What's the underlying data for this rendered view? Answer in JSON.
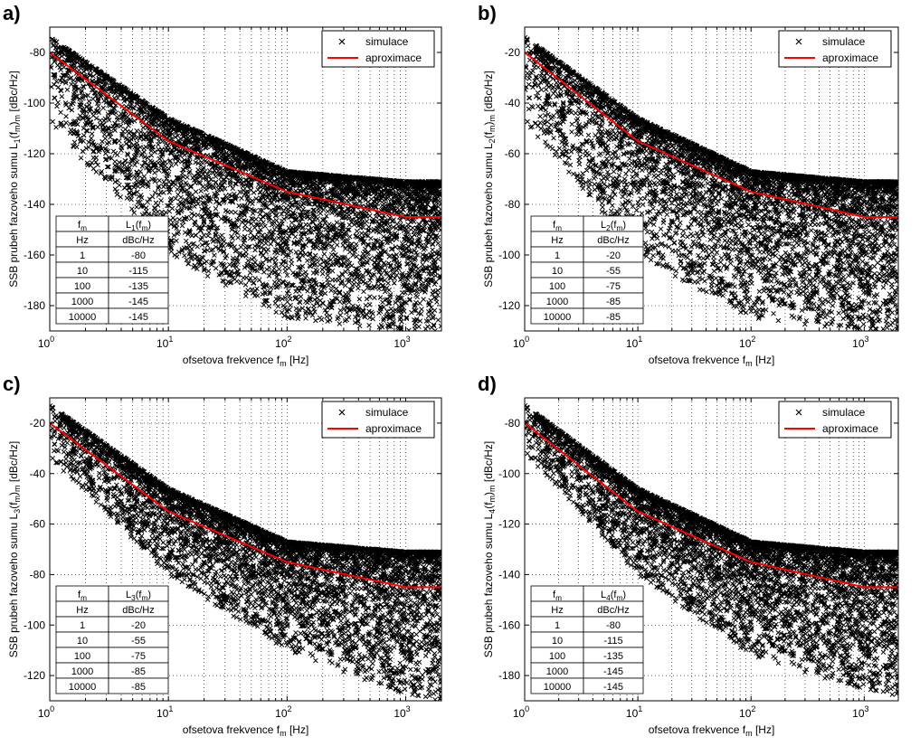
{
  "chart_data": [
    {
      "type": "scatter",
      "panel_label": "a)",
      "xlabel_main": "ofsetova frekvence f",
      "xlabel_sub": "m",
      "xlabel_unit": " [Hz]",
      "ylabel_main": "SSB prubeh fazoveho sumu L",
      "ylabel_index": "1",
      "ylabel_unit": " [dBc/Hz]",
      "xscale": "log",
      "xlim": [
        1,
        2000
      ],
      "ylim": [
        -190,
        -70
      ],
      "yticks": [
        -180,
        -160,
        -140,
        -120,
        -100,
        -80
      ],
      "xticks": [
        "10^0",
        "10^1",
        "10^2",
        "10^3"
      ],
      "grid": true,
      "legend_position": "top-right",
      "series": [
        {
          "name": "simulace",
          "marker": "x",
          "color": "#000000",
          "approx_envelope": {
            "x": [
              1,
              10,
              100,
              1000,
              2000
            ],
            "upper": [
              -74,
              -106,
              -127,
              -131,
              -131
            ],
            "lower": [
              -108,
              -160,
              -185,
              -190,
              -190
            ]
          }
        },
        {
          "name": "aproximace",
          "marker": "line",
          "color": "#ff0000",
          "x": [
            1,
            10,
            100,
            1000,
            2000
          ],
          "y": [
            -80,
            -115,
            -135,
            -145,
            -145
          ]
        }
      ],
      "table": {
        "headers": [
          "f_m",
          "L_1(f_m)"
        ],
        "units": [
          "Hz",
          "dBc/Hz"
        ],
        "rows": [
          [
            "1",
            "-80"
          ],
          [
            "10",
            "-115"
          ],
          [
            "100",
            "-135"
          ],
          [
            "1000",
            "-145"
          ],
          [
            "10000",
            "-145"
          ]
        ]
      }
    },
    {
      "type": "scatter",
      "panel_label": "b)",
      "xlabel_main": "ofsetova frekvence f",
      "xlabel_sub": "m",
      "xlabel_unit": " [Hz]",
      "ylabel_main": "SSB prubeh fazoveho sumu L",
      "ylabel_index": "2",
      "ylabel_unit": " [dBc/Hz]",
      "xscale": "log",
      "xlim": [
        1,
        2000
      ],
      "ylim": [
        -130,
        -10
      ],
      "yticks": [
        -120,
        -100,
        -80,
        -60,
        -40,
        -20
      ],
      "xticks": [
        "10^0",
        "10^1",
        "10^2",
        "10^3"
      ],
      "grid": true,
      "legend_position": "top-right",
      "series": [
        {
          "name": "simulace",
          "marker": "x",
          "color": "#000000",
          "approx_envelope": {
            "x": [
              1,
              10,
              100,
              1000,
              2000
            ],
            "upper": [
              -14,
              -46,
              -67,
              -71,
              -71
            ],
            "lower": [
              -48,
              -100,
              -125,
              -130,
              -130
            ]
          }
        },
        {
          "name": "aproximace",
          "marker": "line",
          "color": "#ff0000",
          "x": [
            1,
            10,
            100,
            1000,
            2000
          ],
          "y": [
            -20,
            -55,
            -75,
            -85,
            -85
          ]
        }
      ],
      "table": {
        "headers": [
          "f_m",
          "L_2(f_m)"
        ],
        "units": [
          "Hz",
          "dBc/Hz"
        ],
        "rows": [
          [
            "1",
            "-20"
          ],
          [
            "10",
            "-55"
          ],
          [
            "100",
            "-75"
          ],
          [
            "1000",
            "-85"
          ],
          [
            "10000",
            "-85"
          ]
        ]
      }
    },
    {
      "type": "scatter",
      "panel_label": "c)",
      "xlabel_main": "ofsetova frekvence f",
      "xlabel_sub": "m",
      "xlabel_unit": " [Hz]",
      "ylabel_main": "SSB prubeh fazoveho sumu L",
      "ylabel_index": "3",
      "ylabel_unit": " [dBc/Hz]",
      "xscale": "log",
      "xlim": [
        1,
        2000
      ],
      "ylim": [
        -130,
        -10
      ],
      "yticks": [
        -120,
        -100,
        -80,
        -60,
        -40,
        -20
      ],
      "xticks": [
        "10^0",
        "10^1",
        "10^2",
        "10^3"
      ],
      "grid": true,
      "legend_position": "top-right",
      "series": [
        {
          "name": "simulace",
          "marker": "x",
          "color": "#000000",
          "approx_envelope": {
            "x": [
              1,
              10,
              100,
              1000,
              2000
            ],
            "upper": [
              -13,
              -46,
              -67,
              -71,
              -71
            ],
            "lower": [
              -34,
              -80,
              -110,
              -128,
              -130
            ]
          }
        },
        {
          "name": "aproximace",
          "marker": "line",
          "color": "#ff0000",
          "x": [
            1,
            10,
            100,
            1000,
            2000
          ],
          "y": [
            -20,
            -55,
            -75,
            -85,
            -85
          ]
        }
      ],
      "table": {
        "headers": [
          "f_m",
          "L_3(f_m)"
        ],
        "units": [
          "Hz",
          "dBc/Hz"
        ],
        "rows": [
          [
            "1",
            "-20"
          ],
          [
            "10",
            "-55"
          ],
          [
            "100",
            "-75"
          ],
          [
            "1000",
            "-85"
          ],
          [
            "10000",
            "-85"
          ]
        ]
      }
    },
    {
      "type": "scatter",
      "panel_label": "d)",
      "xlabel_main": "ofsetova frekvence f",
      "xlabel_sub": "m",
      "xlabel_unit": " [Hz]",
      "ylabel_main": "SSB prubeh fazoveho sumu L",
      "ylabel_index": "4",
      "ylabel_unit": " [dBc/Hz]",
      "xscale": "log",
      "xlim": [
        1,
        2000
      ],
      "ylim": [
        -190,
        -70
      ],
      "yticks": [
        -180,
        -160,
        -140,
        -120,
        -100,
        -80
      ],
      "xticks": [
        "10^0",
        "10^1",
        "10^2",
        "10^3"
      ],
      "grid": true,
      "legend_position": "top-right",
      "series": [
        {
          "name": "simulace",
          "marker": "x",
          "color": "#000000",
          "approx_envelope": {
            "x": [
              1,
              10,
              100,
              1000,
              2000
            ],
            "upper": [
              -73,
              -106,
              -127,
              -131,
              -131
            ],
            "lower": [
              -92,
              -140,
              -172,
              -186,
              -188
            ]
          }
        },
        {
          "name": "aproximace",
          "marker": "line",
          "color": "#ff0000",
          "x": [
            1,
            10,
            100,
            1000,
            2000
          ],
          "y": [
            -80,
            -115,
            -135,
            -145,
            -145
          ]
        }
      ],
      "table": {
        "headers": [
          "f_m",
          "L_4(f_m)"
        ],
        "units": [
          "Hz",
          "dBc/Hz"
        ],
        "rows": [
          [
            "1",
            "-80"
          ],
          [
            "10",
            "-115"
          ],
          [
            "100",
            "-135"
          ],
          [
            "1000",
            "-145"
          ],
          [
            "10000",
            "-145"
          ]
        ]
      }
    }
  ]
}
